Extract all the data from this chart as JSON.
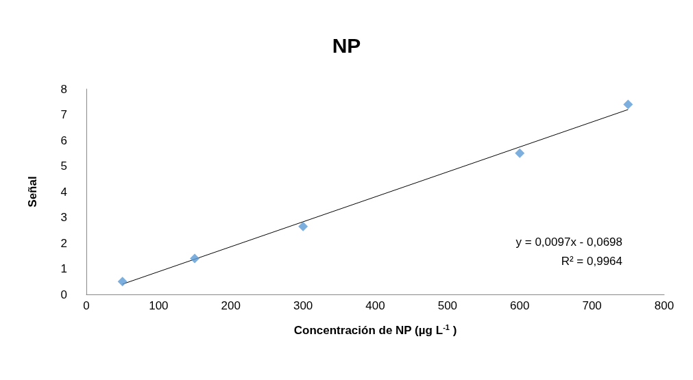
{
  "chart_data": {
    "type": "scatter",
    "title": "NP",
    "xlabel": "Concentración de NP (µg L$^{-1}$ )",
    "ylabel": "Señal",
    "x": [
      50,
      150,
      300,
      600,
      750
    ],
    "series": [
      {
        "color": "#5b9bd5",
        "marker": "diamond",
        "values": [
          0.5,
          1.4,
          2.65,
          5.5,
          7.4
        ]
      },
      {
        "type": "line",
        "color": "#000000",
        "marker": "none",
        "line_style": "solid",
        "x": [
          50,
          750
        ],
        "values": [
          0.4,
          7.2
        ]
      }
    ],
    "xlim": [
      0,
      800
    ],
    "xticks": [
      0,
      100,
      200,
      300,
      400,
      500,
      600,
      700,
      800
    ],
    "ylim": [
      0,
      8
    ],
    "yticks": [
      0,
      1,
      2,
      3,
      4,
      5,
      6,
      7,
      8
    ],
    "grid": false,
    "annotations": [
      "y = 0,0097x - 0,0698",
      "R² = 0,9964"
    ]
  }
}
